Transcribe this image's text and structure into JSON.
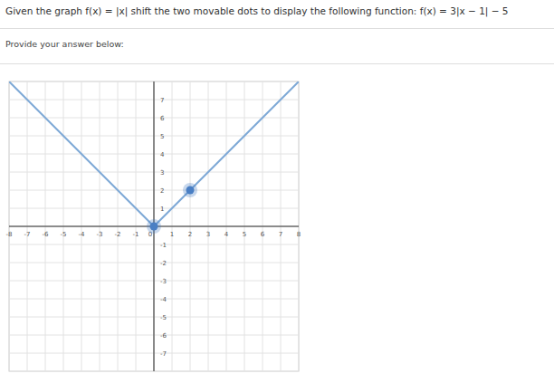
{
  "page": {
    "question": "Given the graph f(x) = |x| shift the two movable dots to display the following function: f(x) = 3|x − 1| − 5",
    "prompt": "Provide your answer below:"
  },
  "chart_data": {
    "type": "line",
    "series": [
      {
        "type": "line",
        "color": "#7ea9d6",
        "x": [
          -8,
          0,
          8
        ],
        "values": [
          8,
          0,
          8
        ]
      },
      {
        "type": "scatter",
        "color": "#4a7fc4",
        "marker": "circle",
        "x": [
          0,
          2
        ],
        "values": [
          0,
          2
        ]
      }
    ],
    "xlim": [
      -8,
      8
    ],
    "ylim": [
      -8,
      8
    ],
    "xticks": [
      -8,
      -7,
      -6,
      -5,
      -4,
      -3,
      -2,
      -1,
      0,
      1,
      2,
      3,
      4,
      5,
      6,
      7,
      8
    ],
    "yticks": [
      -7,
      -6,
      -5,
      -4,
      -3,
      -2,
      -1,
      1,
      2,
      3,
      4,
      5,
      6,
      7
    ],
    "grid": true
  }
}
